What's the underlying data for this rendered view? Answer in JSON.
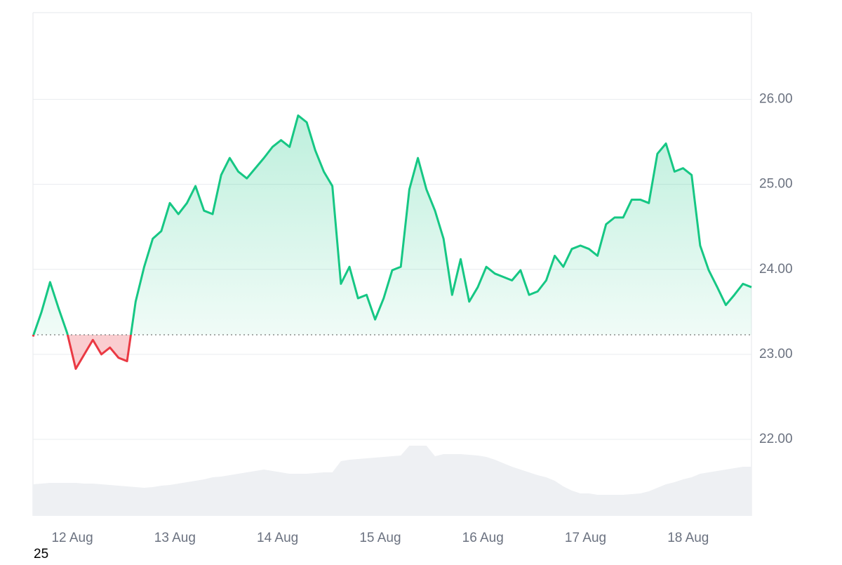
{
  "chart_data": {
    "type": "line",
    "x": [
      0,
      1,
      2,
      3,
      4,
      5,
      6,
      7,
      8,
      9,
      10,
      11,
      12,
      13,
      14,
      15,
      16,
      17,
      18,
      19,
      20,
      21,
      22,
      23,
      24,
      25,
      26,
      27,
      28,
      29,
      30,
      31,
      32,
      33,
      34,
      35,
      36,
      37,
      38,
      39,
      40,
      41,
      42,
      43,
      44,
      45,
      46,
      47,
      48,
      49,
      50,
      51,
      52,
      53,
      54,
      55,
      56,
      57,
      58,
      59,
      60,
      61,
      62,
      63,
      64,
      65,
      66,
      67,
      68,
      69,
      70,
      71,
      72,
      73,
      74,
      75,
      76,
      77,
      78,
      79,
      80,
      81,
      82,
      83,
      84
    ],
    "series": [
      {
        "color": "#16c784",
        "below_color": "#ea3943",
        "values": [
          23.21,
          23.5,
          23.85,
          23.54,
          23.25,
          22.83,
          23.0,
          23.17,
          23.0,
          23.08,
          22.96,
          22.92,
          23.62,
          24.03,
          24.36,
          24.45,
          24.78,
          24.65,
          24.78,
          24.98,
          24.69,
          24.65,
          25.11,
          25.31,
          25.15,
          25.07,
          25.19,
          25.31,
          25.44,
          25.52,
          25.44,
          25.81,
          25.73,
          25.4,
          25.15,
          24.98,
          23.83,
          24.03,
          23.66,
          23.7,
          23.41,
          23.66,
          23.99,
          24.03,
          24.94,
          25.31,
          24.94,
          24.69,
          24.36,
          23.7,
          24.12,
          23.62,
          23.79,
          24.03,
          23.95,
          23.91,
          23.87,
          23.99,
          23.7,
          23.74,
          23.87,
          24.16,
          24.03,
          24.24,
          24.28,
          24.24,
          24.16,
          24.53,
          24.61,
          24.61,
          24.82,
          24.82,
          24.78,
          25.36,
          25.48,
          25.15,
          25.19,
          25.11,
          24.28,
          23.99,
          23.79,
          23.58,
          23.7,
          23.83,
          23.79
        ]
      }
    ],
    "volume": {
      "color": "#eef0f3",
      "values": [
        45,
        46,
        47,
        47,
        47,
        47,
        46,
        46,
        45,
        44,
        43,
        42,
        41,
        40,
        41,
        43,
        44,
        46,
        48,
        50,
        52,
        55,
        56,
        58,
        60,
        62,
        64,
        66,
        64,
        62,
        60,
        60,
        60,
        61,
        62,
        62,
        78,
        80,
        81,
        82,
        83,
        84,
        85,
        86,
        100,
        100,
        100,
        85,
        88,
        88,
        88,
        87,
        86,
        84,
        80,
        75,
        70,
        66,
        62,
        58,
        55,
        50,
        42,
        36,
        32,
        32,
        30,
        30,
        30,
        30,
        31,
        32,
        35,
        40,
        45,
        48,
        52,
        55,
        60,
        62,
        64,
        66,
        68,
        70,
        70
      ]
    },
    "baseline": 23.23,
    "xlim": [
      0,
      84
    ],
    "xticks": [
      {
        "value": 4.6,
        "label": "12 Aug"
      },
      {
        "value": 16.6,
        "label": "13 Aug"
      },
      {
        "value": 28.6,
        "label": "14 Aug"
      },
      {
        "value": 40.6,
        "label": "15 Aug"
      },
      {
        "value": 52.6,
        "label": "16 Aug"
      },
      {
        "value": 64.6,
        "label": "17 Aug"
      },
      {
        "value": 76.6,
        "label": "18 Aug"
      }
    ],
    "ylim": [
      21.1,
      27.02
    ],
    "yticks": [
      {
        "value": 22,
        "label": "22.00"
      },
      {
        "value": 23,
        "label": "23.00"
      },
      {
        "value": 24,
        "label": "24.00"
      },
      {
        "value": 25,
        "label": "25.00"
      },
      {
        "value": 26,
        "label": "26.00"
      }
    ],
    "grid": true,
    "footer_text": "25"
  }
}
